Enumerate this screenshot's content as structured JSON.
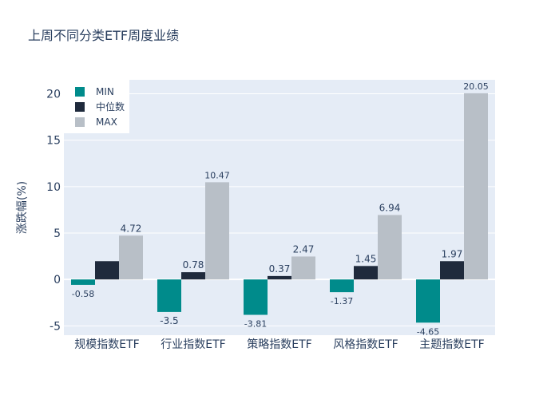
{
  "chart_data": {
    "type": "bar",
    "title": "上周不同分类ETF周度业绩",
    "xlabel": "",
    "ylabel": "涨跌幅(%)",
    "categories": [
      "规模指数ETF",
      "行业指数ETF",
      "策略指数ETF",
      "风格指数ETF",
      "主题指数ETF"
    ],
    "series": [
      {
        "name": "MIN",
        "color": "#008b8b",
        "values": [
          -0.58,
          -3.5,
          -3.81,
          -1.37,
          -4.65
        ],
        "labels": [
          "-0.58",
          "-3.5",
          "-3.81",
          "-1.37",
          "-4.65"
        ]
      },
      {
        "name": "中位数",
        "color": "#1f2a3c",
        "values": [
          1.97,
          0.78,
          0.37,
          1.45,
          1.97
        ],
        "labels": [
          "",
          "0.78",
          "0.37",
          "1.45",
          "1.97"
        ]
      },
      {
        "name": "MAX",
        "color": "#b8bfc7",
        "values": [
          4.72,
          10.47,
          2.47,
          6.94,
          20.05
        ],
        "labels": [
          "4.72",
          "10.47",
          "2.47",
          "6.94",
          "20.05"
        ]
      }
    ],
    "ylim": [
      -6,
      21.5
    ],
    "yticks": [
      -5,
      0,
      5,
      10,
      15,
      20
    ],
    "grid": true,
    "legend_position": "top-left",
    "plot_bg": "#e5ecf6"
  }
}
